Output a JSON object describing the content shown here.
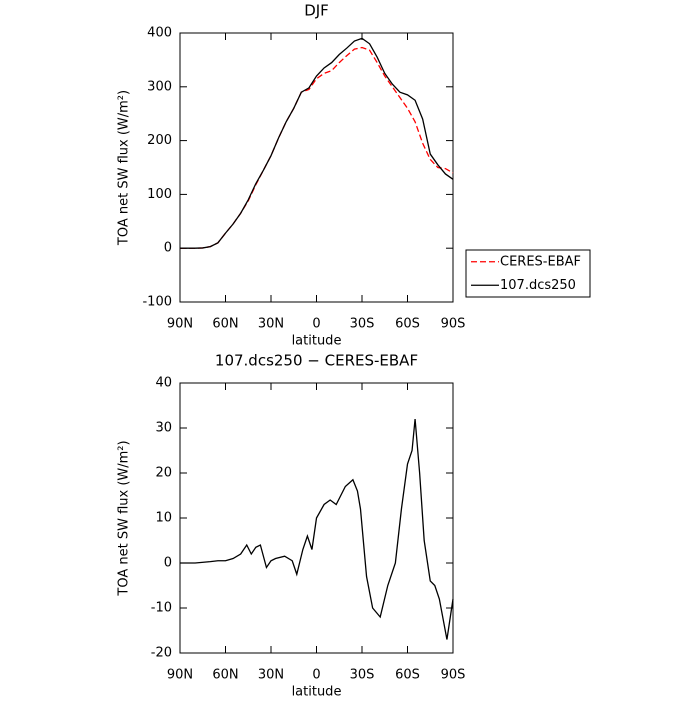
{
  "chart_data": [
    {
      "type": "line",
      "title": "DJF",
      "xlabel": "latitude",
      "ylabel": "TOA net SW flux (W/m²)",
      "x": [
        90,
        85,
        80,
        75,
        70,
        65,
        60,
        55,
        50,
        45,
        40,
        35,
        30,
        25,
        20,
        15,
        10,
        5,
        0,
        -5,
        -10,
        -15,
        -20,
        -25,
        -30,
        -35,
        -40,
        -45,
        -50,
        -55,
        -60,
        -65,
        -70,
        -75,
        -80,
        -85,
        -90
      ],
      "series": [
        {
          "name": "CERES-EBAF",
          "color": "#ff0000",
          "dashed": true,
          "values": [
            0,
            0,
            0,
            0.5,
            3,
            10,
            28,
            45,
            65,
            88,
            118,
            145,
            172,
            205,
            235,
            260,
            290,
            295,
            315,
            325,
            330,
            345,
            358,
            370,
            373,
            368,
            345,
            320,
            300,
            280,
            260,
            235,
            195,
            165,
            150,
            148,
            140
          ]
        },
        {
          "name": "107.dcs250",
          "color": "#000000",
          "dashed": false,
          "values": [
            0,
            0,
            0,
            0.5,
            3,
            10,
            28,
            45,
            65,
            90,
            120,
            145,
            172,
            205,
            235,
            260,
            290,
            298,
            320,
            335,
            345,
            360,
            372,
            385,
            390,
            380,
            355,
            325,
            305,
            290,
            285,
            275,
            240,
            175,
            155,
            138,
            128
          ]
        }
      ],
      "xlim": [
        90,
        -90
      ],
      "xticks": [
        {
          "value": 90,
          "label": "90N"
        },
        {
          "value": 60,
          "label": "60N"
        },
        {
          "value": 30,
          "label": "30N"
        },
        0,
        {
          "value": -30,
          "label": "30S"
        },
        {
          "value": -60,
          "label": "60S"
        },
        {
          "value": -90,
          "label": "90S"
        }
      ],
      "ylim": [
        -100,
        400
      ],
      "yticks": [
        -100,
        0,
        100,
        200,
        300,
        400
      ],
      "legend": "right"
    },
    {
      "type": "line",
      "title": "107.dcs250 − CERES-EBAF",
      "xlabel": "latitude",
      "ylabel": "TOA net SW flux (W/m²)",
      "x": [
        90,
        80,
        70,
        65,
        60,
        55,
        50,
        46,
        43,
        40,
        37,
        33,
        30,
        27,
        21,
        16,
        13,
        9,
        6,
        3,
        0,
        -5,
        -9,
        -13,
        -19,
        -24,
        -27,
        -29,
        -33,
        -37,
        -42,
        -47,
        -52,
        -56,
        -60,
        -63,
        -65,
        -68,
        -71,
        -75,
        -78,
        -81,
        -86,
        -90
      ],
      "values": [
        0,
        0,
        0.3,
        0.5,
        0.5,
        1,
        2,
        4,
        2,
        3.5,
        4,
        -1,
        0.5,
        1,
        1.5,
        0.5,
        -2.5,
        3,
        6,
        3,
        10,
        13,
        14,
        13,
        17,
        18.5,
        16,
        12,
        -3,
        -10,
        -12,
        -5,
        0,
        12,
        22,
        25,
        32,
        20,
        5,
        -4,
        -5,
        -8,
        -17,
        -8
      ],
      "color": "#000000",
      "xlim": [
        90,
        -90
      ],
      "xticks": [
        {
          "value": 90,
          "label": "90N"
        },
        {
          "value": 60,
          "label": "60N"
        },
        {
          "value": 30,
          "label": "30N"
        },
        0,
        {
          "value": -30,
          "label": "30S"
        },
        {
          "value": -60,
          "label": "60S"
        },
        {
          "value": -90,
          "label": "90S"
        }
      ],
      "ylim": [
        -20,
        40
      ],
      "yticks": [
        -20,
        -10,
        0,
        10,
        20,
        30,
        40
      ]
    }
  ]
}
